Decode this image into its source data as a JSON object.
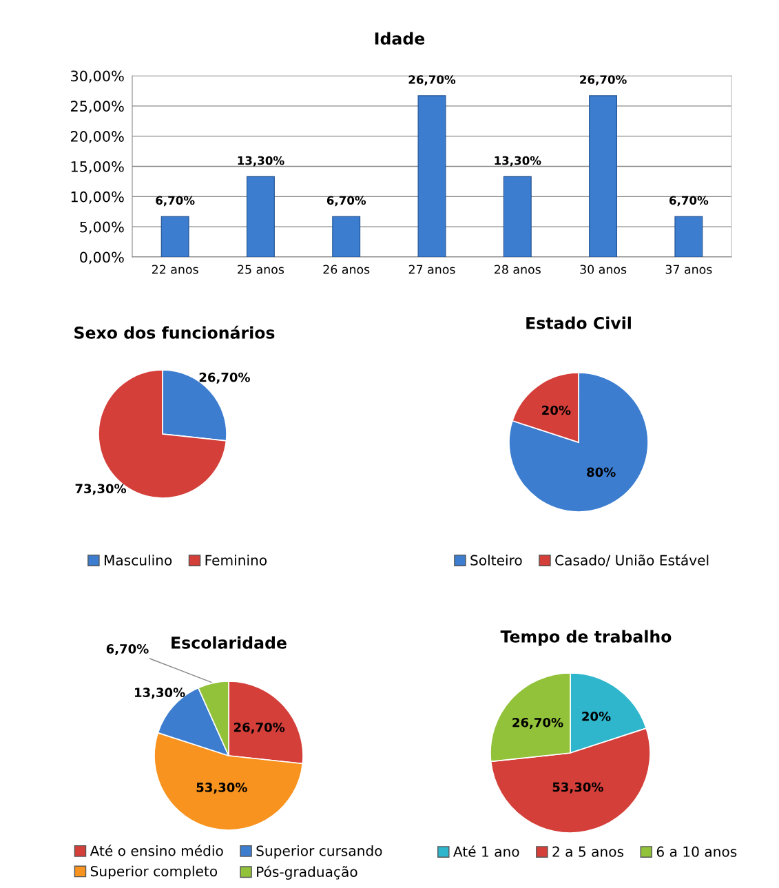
{
  "chart_data": [
    {
      "type": "bar",
      "title": "Idade",
      "categories": [
        "22 anos",
        "25 anos",
        "26 anos",
        "27 anos",
        "28 anos",
        "30 anos",
        "37 anos"
      ],
      "values": [
        6.7,
        13.3,
        6.7,
        26.7,
        13.3,
        26.7,
        6.7
      ],
      "color": "#3c7dd0",
      "value_labels": [
        "6,70%",
        "13,30%",
        "6,70%",
        "26,70%",
        "13,30%",
        "26,70%",
        "6,70%"
      ],
      "ylim": [
        0,
        30
      ],
      "yticks": [
        {
          "value": 0,
          "label": "0,00%"
        },
        {
          "value": 5,
          "label": "5,00%"
        },
        {
          "value": 10,
          "label": "10,00%"
        },
        {
          "value": 15,
          "label": "15,00%"
        },
        {
          "value": 20,
          "label": "20,00%"
        },
        {
          "value": 25,
          "label": "25,00%"
        },
        {
          "value": 30,
          "label": "30,00%"
        }
      ],
      "grid": "y"
    },
    {
      "type": "pie",
      "title": "Sexo dos funcionários",
      "categories": [
        "Masculino",
        "Feminino"
      ],
      "values": [
        26.7,
        73.3
      ],
      "colors": [
        "#3c7dd0",
        "#d43f3a"
      ],
      "value_labels": [
        "26,70%",
        "73,30%"
      ],
      "legend": "bottom"
    },
    {
      "type": "pie",
      "title": "Estado Civil",
      "categories": [
        "Solteiro",
        "Casado/ União Estável"
      ],
      "values": [
        80,
        20
      ],
      "colors": [
        "#3c7dd0",
        "#d43f3a"
      ],
      "value_labels": [
        "80%",
        "20%"
      ],
      "legend": "bottom"
    },
    {
      "type": "pie",
      "title": "Escolaridade",
      "categories": [
        "Até o ensino médio",
        "Superior completo",
        "Superior cursando",
        "Pós-graduação"
      ],
      "values": [
        26.7,
        53.3,
        13.3,
        6.7
      ],
      "colors": [
        "#d43f3a",
        "#f7931e",
        "#3c7dd0",
        "#92c13a"
      ],
      "value_labels": [
        "26,70%",
        "53,30%",
        "13,30%",
        "6,70%"
      ],
      "legend": "bottom"
    },
    {
      "type": "pie",
      "title": "Tempo de trabalho",
      "categories": [
        "Até 1 ano",
        "2 a 5 anos",
        "6 a 10 anos"
      ],
      "values": [
        20,
        53.3,
        26.7
      ],
      "colors": [
        "#2fb6cc",
        "#d43f3a",
        "#92c13a"
      ],
      "value_labels": [
        "20%",
        "53,30%",
        "26,70%"
      ],
      "legend": "bottom"
    }
  ]
}
